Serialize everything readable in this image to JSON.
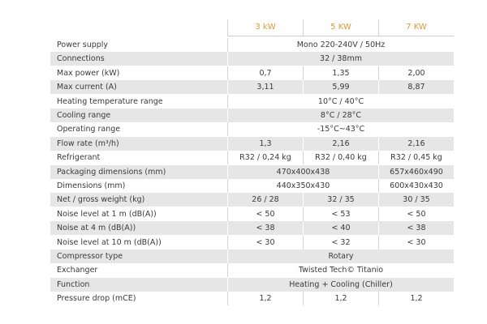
{
  "table": {
    "columns": [
      "3 kW",
      "5 KW",
      "7 KW"
    ],
    "rows": [
      {
        "label": "Power supply",
        "values": [
          "Mono 220-240V / 50Hz"
        ]
      },
      {
        "label": "Connections",
        "values": [
          "32 / 38mm"
        ]
      },
      {
        "label": "Max power (kW)",
        "values": [
          "0,7",
          "1,35",
          "2,00"
        ]
      },
      {
        "label": "Max current (A)",
        "values": [
          "3,11",
          "5,99",
          "8,87"
        ]
      },
      {
        "label": "Heating temperature range",
        "values": [
          "10°C / 40°C"
        ]
      },
      {
        "label": "Cooling range",
        "values": [
          "8°C / 28°C"
        ]
      },
      {
        "label": "Operating range",
        "values": [
          "-15°C~43°C"
        ]
      },
      {
        "label": "Flow rate (m³/h)",
        "values": [
          "1,3",
          "2,16",
          "2,16"
        ]
      },
      {
        "label": "Refrigerant",
        "values": [
          "R32 / 0,24 kg",
          "R32 / 0,40 kg",
          "R32 / 0,45 kg"
        ]
      },
      {
        "label": "Packaging dimensions (mm)",
        "values": [
          "470x400x438",
          "657x460x490"
        ]
      },
      {
        "label": "Dimensions (mm)",
        "values": [
          "440x350x430",
          "600x430x430"
        ]
      },
      {
        "label": "Net / gross weight (kg)",
        "values": [
          "26 / 28",
          "32 / 35",
          "30 / 35"
        ]
      },
      {
        "label": "Noise level at 1 m (dB(A))",
        "values": [
          "< 50",
          "< 53",
          "< 50"
        ]
      },
      {
        "label": "Noise at 4 m (dB(A))",
        "values": [
          "< 38",
          "< 40",
          "< 38"
        ]
      },
      {
        "label": "Noise level at 10 m (dB(A))",
        "values": [
          "< 30",
          "< 32",
          "< 30"
        ]
      },
      {
        "label": "Compressor type",
        "values": [
          "Rotary"
        ]
      },
      {
        "label": "Exchanger",
        "values": [
          "Twisted Tech© Titanio"
        ]
      },
      {
        "label": "Function",
        "values": [
          "Heating + Cooling (Chiller)"
        ]
      },
      {
        "label": "Pressure drop (mCE)",
        "values": [
          "1,2",
          "1,2",
          "1,2"
        ]
      }
    ]
  }
}
